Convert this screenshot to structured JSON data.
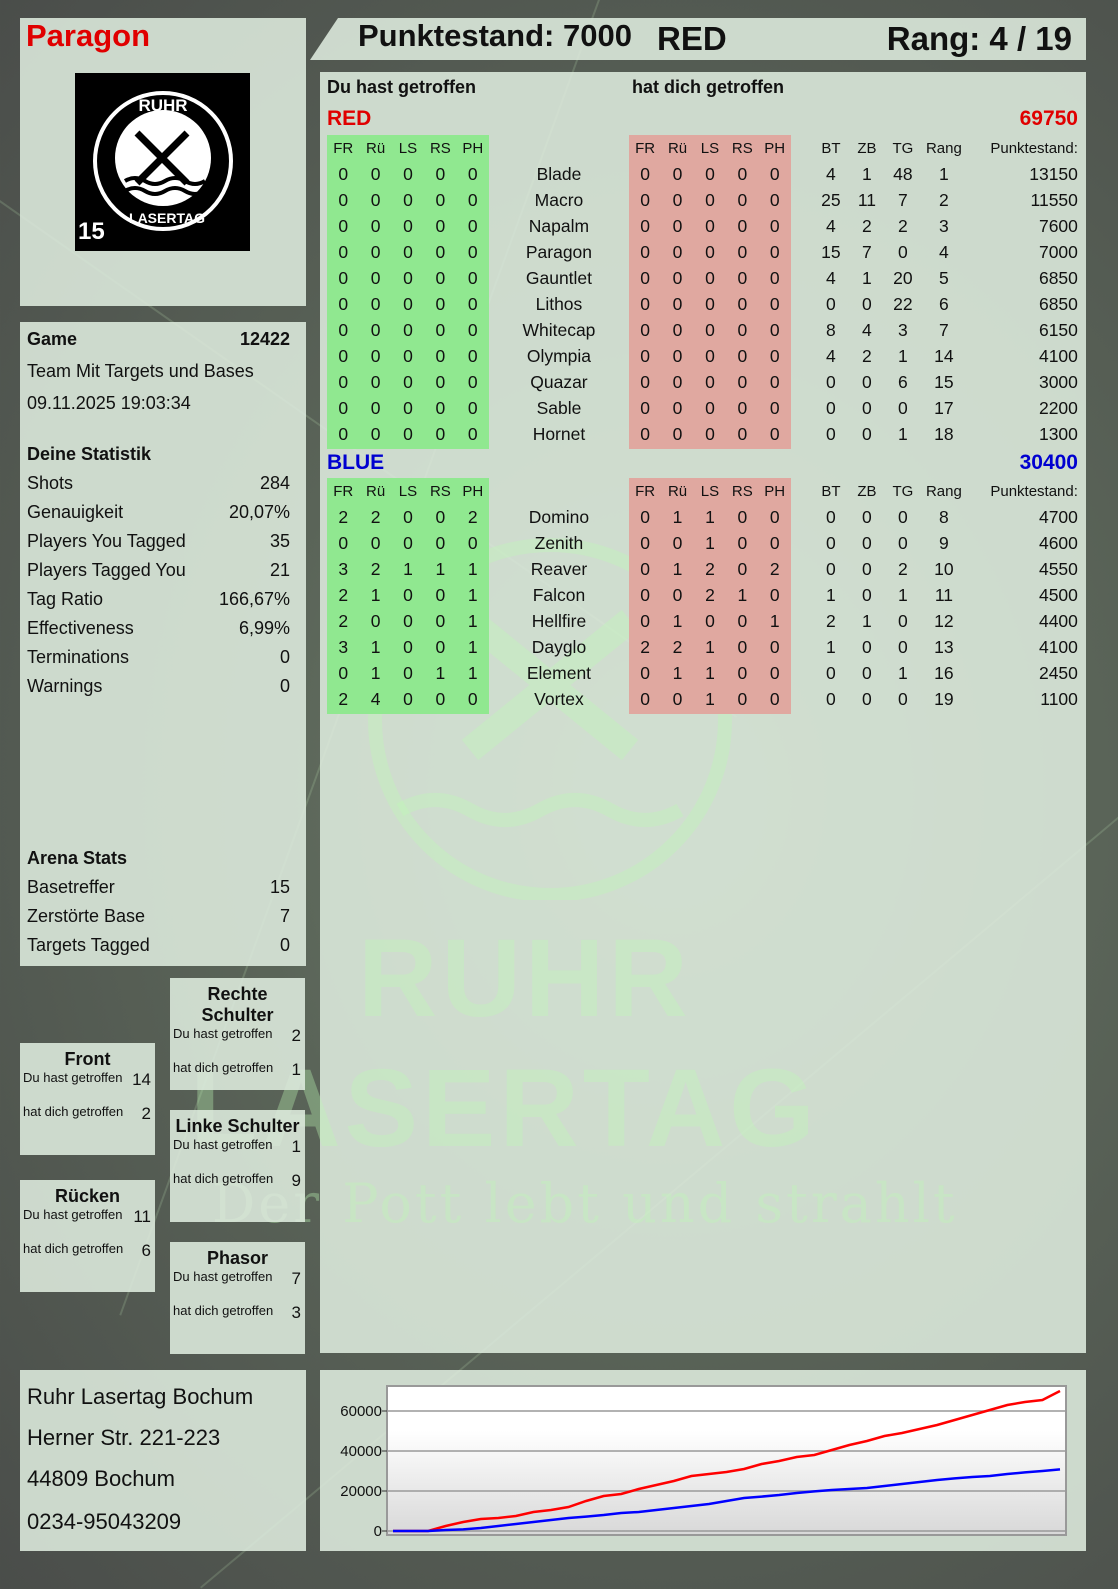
{
  "player": {
    "name": "Paragon",
    "score_label": "Punktestand: 7000",
    "team": "RED",
    "rank_label": "Rang: 4 / 19"
  },
  "logo": {
    "text_top": "RUHR",
    "text_bottom": "LASERTAG",
    "badge": "15"
  },
  "game": {
    "label": "Game",
    "id": "12422",
    "mode": "Team Mit Targets und Bases",
    "datetime": "09.11.2025 19:03:34"
  },
  "stats": {
    "title": "Deine Statistik",
    "rows": [
      [
        "Shots",
        "284"
      ],
      [
        "Genauigkeit",
        "20,07%"
      ],
      [
        "Players You Tagged",
        "35"
      ],
      [
        "Players Tagged You",
        "21"
      ],
      [
        "Tag Ratio",
        "166,67%"
      ],
      [
        "Effectiveness",
        "6,99%"
      ],
      [
        "Terminations",
        "0"
      ],
      [
        "Warnings",
        "0"
      ]
    ]
  },
  "arena": {
    "title": "Arena Stats",
    "rows": [
      [
        "Basetreffer",
        "15"
      ],
      [
        "Zerstörte Base",
        "7"
      ],
      [
        "Targets Tagged",
        "0"
      ]
    ]
  },
  "hits": [
    {
      "title": "Front",
      "you_hit_label": "Du hast getroffen",
      "you_hit": "14",
      "hit_you_label": "hat dich getroffen",
      "hit_you": "2"
    },
    {
      "title": "Rücken",
      "you_hit_label": "Du hast getroffen",
      "you_hit": "11",
      "hit_you_label": "hat dich getroffen",
      "hit_you": "6"
    },
    {
      "title": "Rechte Schulter",
      "you_hit_label": "Du hast getroffen",
      "you_hit": "2",
      "hit_you_label": "hat dich getroffen",
      "hit_you": "1"
    },
    {
      "title": "Linke Schulter",
      "you_hit_label": "Du hast getroffen",
      "you_hit": "1",
      "hit_you_label": "hat dich getroffen",
      "hit_you": "9"
    },
    {
      "title": "Phasor",
      "you_hit_label": "Du hast getroffen",
      "you_hit": "7",
      "hit_you_label": "hat dich getroffen",
      "hit_you": "3"
    }
  ],
  "address": [
    "Ruhr Lasertag Bochum",
    "Herner Str. 221-223",
    "44809 Bochum",
    "0234-95043209"
  ],
  "table": {
    "you_hit_header": "Du hast getroffen",
    "hit_you_header": "hat dich getroffen",
    "columns": [
      "FR",
      "Rü",
      "LS",
      "RS",
      "PH",
      "",
      "FR",
      "Rü",
      "LS",
      "RS",
      "PH",
      "",
      "BT",
      "ZB",
      "TG",
      "Rang",
      "Punktestand:"
    ],
    "teams": [
      {
        "name": "RED",
        "score": "69750",
        "color": "#e00000",
        "rows": [
          [
            "0",
            "0",
            "0",
            "0",
            "0",
            "Blade",
            "0",
            "0",
            "0",
            "0",
            "0",
            "",
            "4",
            "1",
            "48",
            "1",
            "13150"
          ],
          [
            "0",
            "0",
            "0",
            "0",
            "0",
            "Macro",
            "0",
            "0",
            "0",
            "0",
            "0",
            "",
            "25",
            "11",
            "7",
            "2",
            "11550"
          ],
          [
            "0",
            "0",
            "0",
            "0",
            "0",
            "Napalm",
            "0",
            "0",
            "0",
            "0",
            "0",
            "",
            "4",
            "2",
            "2",
            "3",
            "7600"
          ],
          [
            "0",
            "0",
            "0",
            "0",
            "0",
            "Paragon",
            "0",
            "0",
            "0",
            "0",
            "0",
            "",
            "15",
            "7",
            "0",
            "4",
            "7000"
          ],
          [
            "0",
            "0",
            "0",
            "0",
            "0",
            "Gauntlet",
            "0",
            "0",
            "0",
            "0",
            "0",
            "",
            "4",
            "1",
            "20",
            "5",
            "6850"
          ],
          [
            "0",
            "0",
            "0",
            "0",
            "0",
            "Lithos",
            "0",
            "0",
            "0",
            "0",
            "0",
            "",
            "0",
            "0",
            "22",
            "6",
            "6850"
          ],
          [
            "0",
            "0",
            "0",
            "0",
            "0",
            "Whitecap",
            "0",
            "0",
            "0",
            "0",
            "0",
            "",
            "8",
            "4",
            "3",
            "7",
            "6150"
          ],
          [
            "0",
            "0",
            "0",
            "0",
            "0",
            "Olympia",
            "0",
            "0",
            "0",
            "0",
            "0",
            "",
            "4",
            "2",
            "1",
            "14",
            "4100"
          ],
          [
            "0",
            "0",
            "0",
            "0",
            "0",
            "Quazar",
            "0",
            "0",
            "0",
            "0",
            "0",
            "",
            "0",
            "0",
            "6",
            "15",
            "3000"
          ],
          [
            "0",
            "0",
            "0",
            "0",
            "0",
            "Sable",
            "0",
            "0",
            "0",
            "0",
            "0",
            "",
            "0",
            "0",
            "0",
            "17",
            "2200"
          ],
          [
            "0",
            "0",
            "0",
            "0",
            "0",
            "Hornet",
            "0",
            "0",
            "0",
            "0",
            "0",
            "",
            "0",
            "0",
            "1",
            "18",
            "1300"
          ]
        ]
      },
      {
        "name": "BLUE",
        "score": "30400",
        "color": "#0000d0",
        "rows": [
          [
            "2",
            "2",
            "0",
            "0",
            "2",
            "Domino",
            "0",
            "1",
            "1",
            "0",
            "0",
            "",
            "0",
            "0",
            "0",
            "8",
            "4700"
          ],
          [
            "0",
            "0",
            "0",
            "0",
            "0",
            "Zenith",
            "0",
            "0",
            "1",
            "0",
            "0",
            "",
            "0",
            "0",
            "0",
            "9",
            "4600"
          ],
          [
            "3",
            "2",
            "1",
            "1",
            "1",
            "Reaver",
            "0",
            "1",
            "2",
            "0",
            "2",
            "",
            "0",
            "0",
            "2",
            "10",
            "4550"
          ],
          [
            "2",
            "1",
            "0",
            "0",
            "1",
            "Falcon",
            "0",
            "0",
            "2",
            "1",
            "0",
            "",
            "1",
            "0",
            "1",
            "11",
            "4500"
          ],
          [
            "2",
            "0",
            "0",
            "0",
            "1",
            "Hellfire",
            "0",
            "1",
            "0",
            "0",
            "1",
            "",
            "2",
            "1",
            "0",
            "12",
            "4400"
          ],
          [
            "3",
            "1",
            "0",
            "0",
            "1",
            "Dayglo",
            "2",
            "2",
            "1",
            "0",
            "0",
            "",
            "1",
            "0",
            "0",
            "13",
            "4100"
          ],
          [
            "0",
            "1",
            "0",
            "1",
            "1",
            "Element",
            "0",
            "1",
            "1",
            "0",
            "0",
            "",
            "0",
            "0",
            "1",
            "16",
            "2450"
          ],
          [
            "2",
            "4",
            "0",
            "0",
            "0",
            "Vortex",
            "0",
            "0",
            "1",
            "0",
            "0",
            "",
            "0",
            "0",
            "0",
            "19",
            "1100"
          ]
        ]
      }
    ],
    "you_hit_color": "#90e890",
    "hit_you_color": "#e0a8a0"
  },
  "watermark": {
    "line1": "RUHR",
    "line2": "LASERTAG",
    "slogan": "Der Pott lebt und strahlt"
  },
  "chart_data": {
    "type": "line",
    "title": "",
    "xlabel": "",
    "ylabel": "",
    "ylim": [
      0,
      72500
    ],
    "yticks": [
      "0",
      "20000",
      "40000",
      "60000"
    ],
    "grid": true,
    "legend": "none",
    "series": [
      {
        "color": "#ff0000",
        "values": [
          0,
          0,
          0,
          2500,
          4500,
          6000,
          6500,
          7500,
          9500,
          10500,
          12000,
          15000,
          17500,
          18500,
          21000,
          23000,
          25000,
          27500,
          28500,
          29500,
          31000,
          33500,
          35000,
          37000,
          38000,
          40500,
          43000,
          45000,
          47500,
          49000,
          51000,
          53000,
          55500,
          58000,
          60500,
          63000,
          64500,
          65500,
          70000
        ]
      },
      {
        "color": "#0000ff",
        "values": [
          0,
          0,
          0,
          500,
          800,
          1500,
          2500,
          3500,
          4500,
          5500,
          6500,
          7200,
          8000,
          9000,
          9500,
          10500,
          11500,
          12500,
          13500,
          15000,
          16500,
          17200,
          18000,
          19000,
          19800,
          20500,
          21000,
          21500,
          22500,
          23500,
          24500,
          25500,
          26300,
          27000,
          27500,
          28500,
          29300,
          30000,
          30800
        ]
      }
    ]
  }
}
